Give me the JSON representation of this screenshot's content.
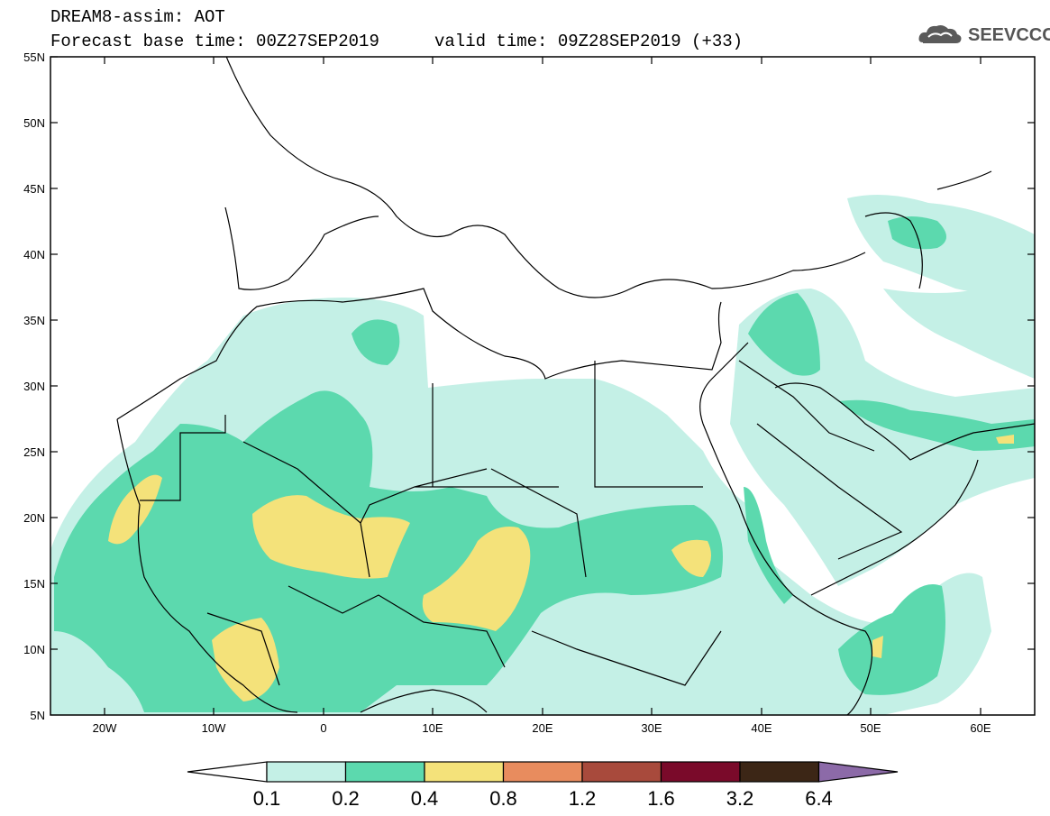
{
  "header": {
    "title": "DREAM8-assim: AOT",
    "base_time": "Forecast base time: 00Z27SEP2019",
    "valid_time": "valid time: 09Z28SEP2019 (+33)"
  },
  "logo": {
    "text": "SEEVCCC",
    "icon": "cloud-logo-icon"
  },
  "map": {
    "lat_labels": [
      "55N",
      "50N",
      "45N",
      "40N",
      "35N",
      "30N",
      "25N",
      "20N",
      "15N",
      "10N",
      "5N"
    ],
    "lon_labels": [
      "20W",
      "10W",
      "0",
      "10E",
      "20E",
      "30E",
      "40E",
      "50E",
      "60E"
    ],
    "lat_range": [
      5,
      55
    ],
    "lon_range": [
      -25,
      65
    ]
  },
  "colorbar": {
    "labels": [
      "0.1",
      "0.2",
      "0.4",
      "0.8",
      "1.2",
      "1.6",
      "3.2",
      "6.4"
    ],
    "colors": [
      "#ffffff",
      "#c4f0e6",
      "#5cd9ae",
      "#f4e27a",
      "#e88c5e",
      "#a84a3c",
      "#7a0a2a",
      "#3c2616",
      "#8c6aa8"
    ]
  },
  "palette": {
    "c1": "#c4f0e6",
    "c2": "#5cd9ae",
    "c3": "#f4e27a"
  }
}
